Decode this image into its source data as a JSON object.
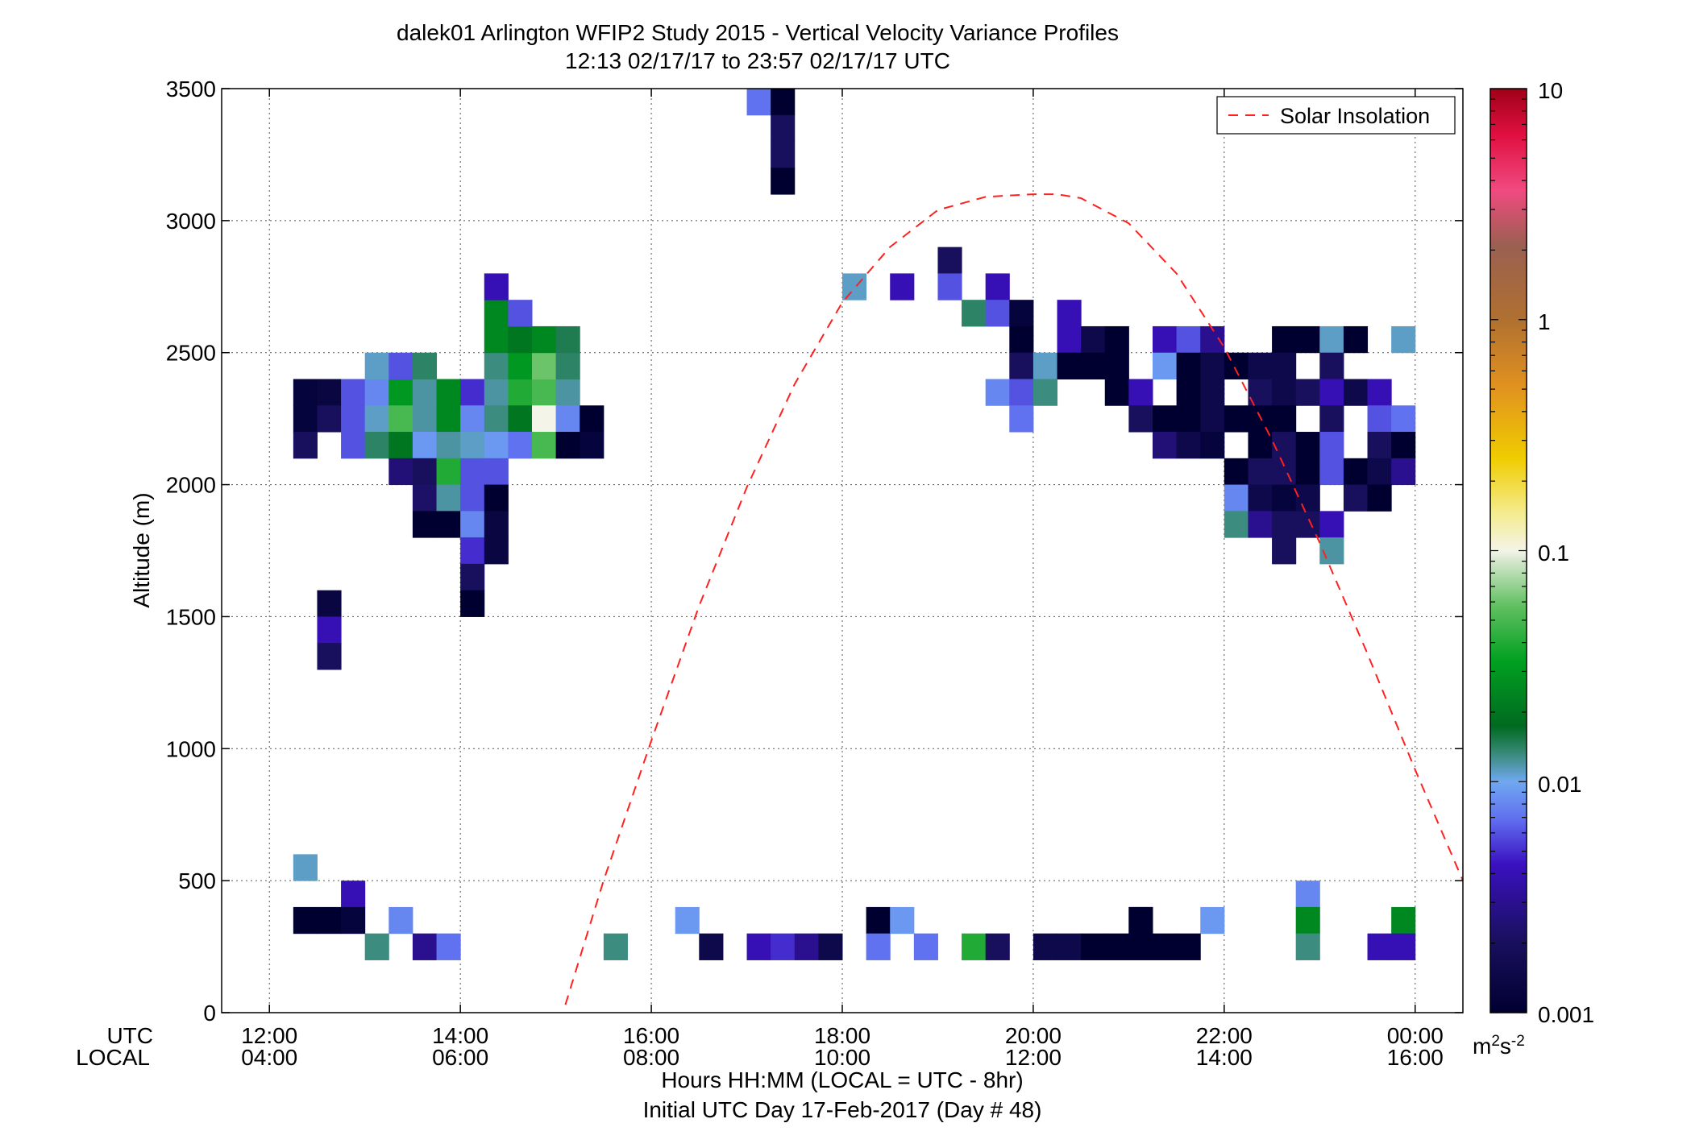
{
  "chart_data": {
    "type": "heatmap",
    "title": "dalek01 Arlington WFIP2 Study 2015 - Vertical Velocity Variance Profiles",
    "subtitle": "12:13 02/17/17 to 23:57 02/17/17  UTC",
    "ylabel": "Altitude (m)",
    "xlabel_line1": "Hours HH:MM  (LOCAL = UTC - 8hr)",
    "xlabel_line2": "Initial UTC Day 17-Feb-2017 (Day # 48)",
    "xaxis_row_labels": [
      "UTC",
      "LOCAL"
    ],
    "x_range_hours": [
      11.5,
      24.5
    ],
    "ylim": [
      0,
      3500
    ],
    "yticks": [
      0,
      500,
      1000,
      1500,
      2000,
      2500,
      3000,
      3500
    ],
    "ytick_labels": [
      "0",
      "500",
      "1000",
      "1500",
      "2000",
      "2500",
      "3000",
      "3500"
    ],
    "xticks_hours": [
      12,
      14,
      16,
      18,
      20,
      22,
      24
    ],
    "xtick_labels_utc": [
      "12:00",
      "14:00",
      "16:00",
      "18:00",
      "20:00",
      "22:00",
      "00:00"
    ],
    "xtick_labels_local": [
      "04:00",
      "06:00",
      "08:00",
      "10:00",
      "12:00",
      "14:00",
      "16:00"
    ],
    "grid": true,
    "legend": {
      "entries": [
        "Solar Insolation"
      ],
      "placement": "top-right"
    },
    "colorbar": {
      "scale": "log",
      "range": [
        0.001,
        10
      ],
      "tick_labels": [
        "10",
        "1",
        "0.1",
        "0.01",
        "0.001"
      ],
      "units_base": "m",
      "units_exp1": "2",
      "units_mid": "s",
      "units_exp2": "-2"
    },
    "cell_size": {
      "hours": 0.25,
      "meters": 100
    },
    "cells": [
      [
        12.375,
        2350,
        0.0012
      ],
      [
        12.625,
        2350,
        0.0013
      ],
      [
        12.875,
        2350,
        0.006
      ],
      [
        13.125,
        2350,
        0.008
      ],
      [
        13.375,
        2350,
        0.03
      ],
      [
        13.625,
        2350,
        0.012
      ],
      [
        13.875,
        2350,
        0.025
      ],
      [
        14.125,
        2350,
        0.005
      ],
      [
        14.375,
        2350,
        0.012
      ],
      [
        14.625,
        2350,
        0.04
      ],
      [
        14.875,
        2350,
        0.05
      ],
      [
        15.125,
        2350,
        0.012
      ],
      [
        12.375,
        2250,
        0.0012
      ],
      [
        12.625,
        2250,
        0.002
      ],
      [
        12.875,
        2250,
        0.006
      ],
      [
        13.125,
        2250,
        0.011
      ],
      [
        13.375,
        2250,
        0.05
      ],
      [
        13.625,
        2250,
        0.012
      ],
      [
        13.875,
        2250,
        0.025
      ],
      [
        14.125,
        2250,
        0.008
      ],
      [
        14.375,
        2250,
        0.013
      ],
      [
        14.625,
        2250,
        0.02
      ],
      [
        14.875,
        2250,
        0.1
      ],
      [
        15.125,
        2250,
        0.008
      ],
      [
        15.375,
        2250,
        0.001
      ],
      [
        12.375,
        2150,
        0.002
      ],
      [
        12.875,
        2150,
        0.006
      ],
      [
        13.125,
        2150,
        0.014
      ],
      [
        13.375,
        2150,
        0.02
      ],
      [
        13.625,
        2150,
        0.009
      ],
      [
        13.875,
        2150,
        0.012
      ],
      [
        14.125,
        2150,
        0.011
      ],
      [
        14.375,
        2150,
        0.009
      ],
      [
        14.625,
        2150,
        0.007
      ],
      [
        14.875,
        2150,
        0.05
      ],
      [
        15.125,
        2150,
        0.001
      ],
      [
        15.375,
        2150,
        0.0012
      ],
      [
        13.125,
        2450,
        0.011
      ],
      [
        13.375,
        2450,
        0.006
      ],
      [
        13.625,
        2450,
        0.014
      ],
      [
        14.375,
        2450,
        0.013
      ],
      [
        14.625,
        2450,
        0.03
      ],
      [
        14.875,
        2450,
        0.06
      ],
      [
        15.125,
        2450,
        0.014
      ],
      [
        14.375,
        2550,
        0.025
      ],
      [
        14.625,
        2550,
        0.02
      ],
      [
        14.875,
        2550,
        0.025
      ],
      [
        15.125,
        2550,
        0.015
      ],
      [
        14.375,
        2650,
        0.025
      ],
      [
        14.625,
        2650,
        0.006
      ],
      [
        14.375,
        2750,
        0.004
      ],
      [
        13.375,
        2050,
        0.0025
      ],
      [
        13.625,
        2050,
        0.002
      ],
      [
        13.875,
        2050,
        0.04
      ],
      [
        14.125,
        2050,
        0.006
      ],
      [
        14.375,
        2050,
        0.006
      ],
      [
        13.625,
        1950,
        0.0022
      ],
      [
        13.875,
        1950,
        0.012
      ],
      [
        14.125,
        1950,
        0.006
      ],
      [
        14.375,
        1950,
        0.001
      ],
      [
        13.625,
        1850,
        0.001
      ],
      [
        13.875,
        1850,
        0.001
      ],
      [
        14.125,
        1850,
        0.008
      ],
      [
        14.375,
        1850,
        0.0013
      ],
      [
        14.125,
        1750,
        0.005
      ],
      [
        14.375,
        1750,
        0.0013
      ],
      [
        14.125,
        1650,
        0.002
      ],
      [
        14.125,
        1550,
        0.001
      ],
      [
        12.625,
        1550,
        0.0013
      ],
      [
        12.625,
        1450,
        0.004
      ],
      [
        12.625,
        1350,
        0.002
      ],
      [
        17.125,
        3450,
        0.007
      ],
      [
        17.375,
        3450,
        0.001
      ],
      [
        17.375,
        3350,
        0.002
      ],
      [
        17.375,
        3250,
        0.002
      ],
      [
        17.375,
        3150,
        0.001
      ],
      [
        18.125,
        2750,
        0.011
      ],
      [
        18.625,
        2750,
        0.004
      ],
      [
        19.125,
        2850,
        0.002
      ],
      [
        19.125,
        2750,
        0.006
      ],
      [
        19.625,
        2750,
        0.004
      ],
      [
        19.375,
        2650,
        0.014
      ],
      [
        19.625,
        2650,
        0.006
      ],
      [
        19.875,
        2650,
        0.0012
      ],
      [
        20.375,
        2650,
        0.004
      ],
      [
        19.875,
        2550,
        0.001
      ],
      [
        20.375,
        2550,
        0.004
      ],
      [
        20.625,
        2550,
        0.0015
      ],
      [
        20.875,
        2550,
        0.001
      ],
      [
        21.375,
        2550,
        0.004
      ],
      [
        21.625,
        2550,
        0.006
      ],
      [
        21.875,
        2550,
        0.003
      ],
      [
        22.625,
        2550,
        0.001
      ],
      [
        22.875,
        2550,
        0.001
      ],
      [
        23.125,
        2550,
        0.011
      ],
      [
        23.375,
        2550,
        0.001
      ],
      [
        23.875,
        2550,
        0.011
      ],
      [
        19.875,
        2450,
        0.002
      ],
      [
        20.125,
        2450,
        0.011
      ],
      [
        20.375,
        2450,
        0.001
      ],
      [
        20.625,
        2450,
        0.001
      ],
      [
        20.875,
        2450,
        0.001
      ],
      [
        21.375,
        2450,
        0.009
      ],
      [
        21.625,
        2450,
        0.001
      ],
      [
        21.875,
        2450,
        0.0015
      ],
      [
        22.125,
        2450,
        0.001
      ],
      [
        22.375,
        2450,
        0.0015
      ],
      [
        22.625,
        2450,
        0.0015
      ],
      [
        23.125,
        2450,
        0.002
      ],
      [
        19.625,
        2350,
        0.008
      ],
      [
        19.875,
        2350,
        0.006
      ],
      [
        20.125,
        2350,
        0.013
      ],
      [
        20.875,
        2350,
        0.001
      ],
      [
        21.125,
        2350,
        0.004
      ],
      [
        21.625,
        2350,
        0.001
      ],
      [
        21.875,
        2350,
        0.0015
      ],
      [
        22.375,
        2350,
        0.002
      ],
      [
        22.625,
        2350,
        0.0015
      ],
      [
        22.875,
        2350,
        0.002
      ],
      [
        23.125,
        2350,
        0.004
      ],
      [
        23.375,
        2350,
        0.0015
      ],
      [
        23.625,
        2350,
        0.004
      ],
      [
        19.875,
        2250,
        0.007
      ],
      [
        21.125,
        2250,
        0.002
      ],
      [
        21.375,
        2250,
        0.001
      ],
      [
        21.625,
        2250,
        0.001
      ],
      [
        21.875,
        2250,
        0.0015
      ],
      [
        22.125,
        2250,
        0.001
      ],
      [
        22.375,
        2250,
        0.001
      ],
      [
        22.625,
        2250,
        0.001
      ],
      [
        23.125,
        2250,
        0.002
      ],
      [
        23.625,
        2250,
        0.006
      ],
      [
        23.875,
        2250,
        0.007
      ],
      [
        21.375,
        2150,
        0.0025
      ],
      [
        21.625,
        2150,
        0.0015
      ],
      [
        21.875,
        2150,
        0.0012
      ],
      [
        22.375,
        2150,
        0.001
      ],
      [
        22.625,
        2150,
        0.002
      ],
      [
        22.875,
        2150,
        0.001
      ],
      [
        23.125,
        2150,
        0.006
      ],
      [
        23.625,
        2150,
        0.002
      ],
      [
        23.875,
        2150,
        0.001
      ],
      [
        22.125,
        2050,
        0.001
      ],
      [
        22.375,
        2050,
        0.002
      ],
      [
        22.625,
        2050,
        0.002
      ],
      [
        22.875,
        2050,
        0.001
      ],
      [
        23.125,
        2050,
        0.006
      ],
      [
        23.375,
        2050,
        0.001
      ],
      [
        23.625,
        2050,
        0.0015
      ],
      [
        23.875,
        2050,
        0.003
      ],
      [
        22.125,
        1950,
        0.008
      ],
      [
        22.375,
        1950,
        0.0015
      ],
      [
        22.625,
        1950,
        0.0012
      ],
      [
        22.875,
        1950,
        0.0015
      ],
      [
        23.375,
        1950,
        0.002
      ],
      [
        23.625,
        1950,
        0.001
      ],
      [
        22.125,
        1850,
        0.013
      ],
      [
        22.375,
        1850,
        0.003
      ],
      [
        22.625,
        1850,
        0.002
      ],
      [
        22.875,
        1850,
        0.002
      ],
      [
        23.125,
        1850,
        0.004
      ],
      [
        22.625,
        1750,
        0.002
      ],
      [
        23.125,
        1750,
        0.012
      ],
      [
        12.375,
        550,
        0.011
      ],
      [
        12.875,
        450,
        0.004
      ],
      [
        22.875,
        450,
        0.008
      ],
      [
        21.125,
        350,
        0.001
      ],
      [
        12.375,
        350,
        0.001
      ],
      [
        12.625,
        350,
        0.001
      ],
      [
        12.875,
        350,
        0.0012
      ],
      [
        13.375,
        350,
        0.008
      ],
      [
        16.375,
        350,
        0.009
      ],
      [
        18.375,
        350,
        0.001
      ],
      [
        18.625,
        350,
        0.009
      ],
      [
        21.125,
        350,
        0.001
      ],
      [
        21.875,
        350,
        0.009
      ],
      [
        22.875,
        350,
        0.025
      ],
      [
        23.875,
        350,
        0.025
      ],
      [
        13.125,
        250,
        0.013
      ],
      [
        13.625,
        250,
        0.003
      ],
      [
        13.875,
        250,
        0.007
      ],
      [
        15.625,
        250,
        0.013
      ],
      [
        16.625,
        250,
        0.0015
      ],
      [
        17.125,
        250,
        0.004
      ],
      [
        17.375,
        250,
        0.005
      ],
      [
        17.625,
        250,
        0.003
      ],
      [
        17.875,
        250,
        0.0015
      ],
      [
        18.375,
        250,
        0.007
      ],
      [
        18.875,
        250,
        0.007
      ],
      [
        19.375,
        250,
        0.04
      ],
      [
        19.625,
        250,
        0.002
      ],
      [
        20.125,
        250,
        0.0015
      ],
      [
        20.375,
        250,
        0.0015
      ],
      [
        20.625,
        250,
        0.001
      ],
      [
        20.875,
        250,
        0.001
      ],
      [
        21.125,
        250,
        0.001
      ],
      [
        21.375,
        250,
        0.001
      ],
      [
        21.625,
        250,
        0.001
      ],
      [
        22.875,
        250,
        0.013
      ],
      [
        23.625,
        250,
        0.004
      ],
      [
        23.875,
        250,
        0.004
      ]
    ],
    "solar_insolation": {
      "style": "red dashed line",
      "x_hours": [
        15.1,
        15.5,
        16.0,
        16.5,
        17.0,
        17.5,
        18.0,
        18.5,
        19.0,
        19.5,
        20.0,
        20.25,
        20.5,
        21.0,
        21.5,
        22.0,
        22.5,
        23.0,
        23.5,
        24.0,
        24.5
      ],
      "y_m": [
        30,
        500,
        1030,
        1540,
        1990,
        2380,
        2690,
        2900,
        3040,
        3090,
        3100,
        3100,
        3085,
        2990,
        2800,
        2520,
        2170,
        1780,
        1360,
        920,
        500
      ]
    }
  }
}
